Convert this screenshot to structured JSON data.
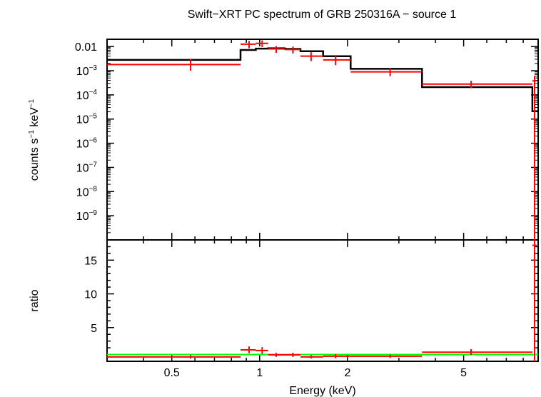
{
  "chart_data": [
    {
      "type": "line",
      "panel": "spectrum",
      "title": "Swift−XRT PC spectrum of GRB 250316A − source 1",
      "xlabel": "Energy (keV)",
      "ylabel_parts": {
        "pre": "counts s",
        "sup1": "−1",
        "mid": " keV",
        "sup2": "−1"
      },
      "xscale": "log",
      "yscale": "log",
      "xlim": [
        0.3,
        9.0
      ],
      "ylim": [
        1e-10,
        0.02
      ],
      "yticks": [
        {
          "value": 0.01,
          "base": "0.01",
          "exp": ""
        },
        {
          "value": 0.001,
          "base": "10",
          "exp": "−3"
        },
        {
          "value": 0.0001,
          "base": "10",
          "exp": "−4"
        },
        {
          "value": 1e-05,
          "base": "10",
          "exp": "−5"
        },
        {
          "value": 1e-06,
          "base": "10",
          "exp": "−6"
        },
        {
          "value": 1e-07,
          "base": "10",
          "exp": "−7"
        },
        {
          "value": 1e-08,
          "base": "10",
          "exp": "−8"
        },
        {
          "value": 1e-09,
          "base": "10",
          "exp": "−9"
        }
      ],
      "series": [
        {
          "name": "data",
          "color": "#ff0000",
          "points": [
            {
              "x_lo": 0.3,
              "x_hi": 0.86,
              "x": 0.58,
              "y": 0.0018,
              "y_lo": 0.001,
              "y_hi": 0.003
            },
            {
              "x_lo": 0.86,
              "x_hi": 0.97,
              "x": 0.92,
              "y": 0.0125,
              "y_lo": 0.0085,
              "y_hi": 0.017
            },
            {
              "x_lo": 0.97,
              "x_hi": 1.07,
              "x": 1.02,
              "y": 0.0135,
              "y_lo": 0.0095,
              "y_hi": 0.018
            },
            {
              "x_lo": 1.07,
              "x_hi": 1.22,
              "x": 1.14,
              "y": 0.008,
              "y_lo": 0.0055,
              "y_hi": 0.0105
            },
            {
              "x_lo": 1.22,
              "x_hi": 1.38,
              "x": 1.3,
              "y": 0.0075,
              "y_lo": 0.0052,
              "y_hi": 0.01
            },
            {
              "x_lo": 1.38,
              "x_hi": 1.65,
              "x": 1.5,
              "y": 0.004,
              "y_lo": 0.0025,
              "y_hi": 0.0058
            },
            {
              "x_lo": 1.65,
              "x_hi": 2.05,
              "x": 1.82,
              "y": 0.0028,
              "y_lo": 0.0017,
              "y_hi": 0.004
            },
            {
              "x_lo": 2.05,
              "x_hi": 3.6,
              "x": 2.8,
              "y": 0.0009,
              "y_lo": 0.0006,
              "y_hi": 0.0013
            },
            {
              "x_lo": 3.6,
              "x_hi": 8.6,
              "x": 5.3,
              "y": 0.00028,
              "y_lo": 0.00019,
              "y_hi": 0.00038
            },
            {
              "x_lo": 8.6,
              "x_hi": 8.9,
              "x": 8.75,
              "y": 0.00038,
              "y_lo": 1e-10,
              "y_hi": 0.0006
            }
          ]
        },
        {
          "name": "model",
          "color": "#000000",
          "steps": [
            {
              "x_lo": 0.3,
              "x_hi": 0.86,
              "y": 0.0028
            },
            {
              "x_lo": 0.86,
              "x_hi": 0.97,
              "y": 0.0072
            },
            {
              "x_lo": 0.97,
              "x_hi": 1.07,
              "y": 0.0082
            },
            {
              "x_lo": 1.07,
              "x_hi": 1.22,
              "y": 0.0085
            },
            {
              "x_lo": 1.22,
              "x_hi": 1.38,
              "y": 0.008
            },
            {
              "x_lo": 1.38,
              "x_hi": 1.65,
              "y": 0.0064
            },
            {
              "x_lo": 1.65,
              "x_hi": 2.05,
              "y": 0.004
            },
            {
              "x_lo": 2.05,
              "x_hi": 3.6,
              "y": 0.0012
            },
            {
              "x_lo": 3.6,
              "x_hi": 8.6,
              "y": 0.00021
            },
            {
              "x_lo": 8.6,
              "x_hi": 9.0,
              "y": 2.1e-05
            }
          ]
        }
      ]
    },
    {
      "type": "line",
      "panel": "ratio",
      "xlabel": "Energy (keV)",
      "ylabel": "ratio",
      "xscale": "log",
      "yscale": "linear",
      "xlim": [
        0.3,
        9.0
      ],
      "ylim": [
        0,
        18
      ],
      "yticks": [
        5,
        10,
        15
      ],
      "xticks": [
        {
          "value": 0.5,
          "label": "0.5"
        },
        {
          "value": 1,
          "label": "1"
        },
        {
          "value": 2,
          "label": "2"
        },
        {
          "value": 5,
          "label": "5"
        }
      ],
      "reference_line": {
        "y": 1,
        "color": "#00ff00"
      },
      "series": [
        {
          "name": "ratio",
          "color": "#ff0000",
          "points": [
            {
              "x_lo": 0.3,
              "x_hi": 0.86,
              "x": 0.58,
              "y": 0.65,
              "y_lo": 0.4,
              "y_hi": 0.9
            },
            {
              "x_lo": 0.86,
              "x_hi": 0.97,
              "x": 0.92,
              "y": 1.7,
              "y_lo": 1.2,
              "y_hi": 2.2
            },
            {
              "x_lo": 0.97,
              "x_hi": 1.07,
              "x": 1.02,
              "y": 1.6,
              "y_lo": 1.1,
              "y_hi": 2.1
            },
            {
              "x_lo": 1.07,
              "x_hi": 1.22,
              "x": 1.14,
              "y": 0.95,
              "y_lo": 0.65,
              "y_hi": 1.25
            },
            {
              "x_lo": 1.22,
              "x_hi": 1.38,
              "x": 1.3,
              "y": 0.95,
              "y_lo": 0.65,
              "y_hi": 1.25
            },
            {
              "x_lo": 1.38,
              "x_hi": 1.65,
              "x": 1.5,
              "y": 0.65,
              "y_lo": 0.4,
              "y_hi": 0.9
            },
            {
              "x_lo": 1.65,
              "x_hi": 2.05,
              "x": 1.82,
              "y": 0.75,
              "y_lo": 0.45,
              "y_hi": 1.05
            },
            {
              "x_lo": 2.05,
              "x_hi": 3.6,
              "x": 2.8,
              "y": 0.75,
              "y_lo": 0.5,
              "y_hi": 1.0
            },
            {
              "x_lo": 3.6,
              "x_hi": 8.6,
              "x": 5.3,
              "y": 1.35,
              "y_lo": 0.9,
              "y_hi": 1.8
            },
            {
              "x_lo": 8.6,
              "x_hi": 8.9,
              "x": 8.75,
              "y": 17.2,
              "y_lo": 0,
              "y_hi": 18
            }
          ]
        }
      ]
    }
  ]
}
